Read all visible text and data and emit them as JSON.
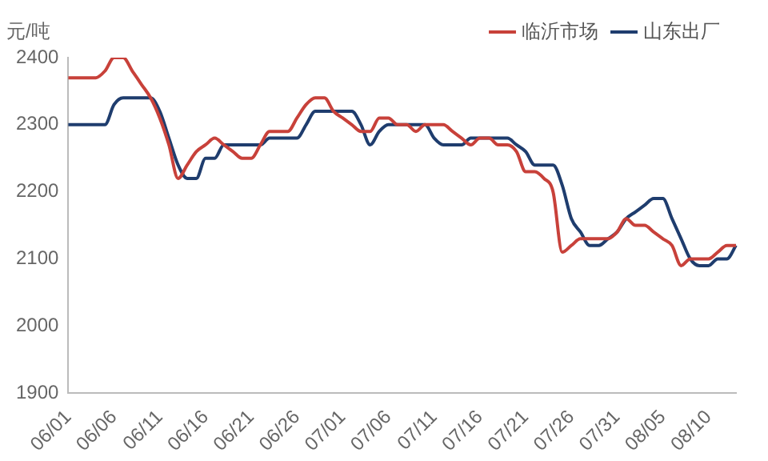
{
  "chart_data": {
    "type": "line",
    "ylabel": "元/吨",
    "categories": [
      "06/01",
      null,
      null,
      null,
      null,
      "06/06",
      null,
      null,
      null,
      null,
      "06/11",
      null,
      null,
      null,
      null,
      "06/16",
      null,
      null,
      null,
      null,
      "06/21",
      null,
      null,
      null,
      null,
      "06/26",
      null,
      null,
      null,
      null,
      "07/01",
      null,
      null,
      null,
      null,
      "07/06",
      null,
      null,
      null,
      null,
      "07/11",
      null,
      null,
      null,
      null,
      "07/16",
      null,
      null,
      null,
      null,
      "07/21",
      null,
      null,
      null,
      null,
      "07/26",
      null,
      null,
      null,
      null,
      "07/31",
      null,
      null,
      null,
      null,
      "08/05",
      null,
      null,
      null,
      null,
      "08/10",
      null,
      null,
      null
    ],
    "series": [
      {
        "name": "临沂市场",
        "color": "#c8413a",
        "values": [
          2370,
          2370,
          2370,
          2370,
          2380,
          2400,
          2400,
          2380,
          2360,
          2340,
          2310,
          2270,
          2220,
          2240,
          2260,
          2270,
          2280,
          2270,
          2260,
          2250,
          2250,
          2270,
          2290,
          2290,
          2290,
          2310,
          2330,
          2340,
          2340,
          2320,
          2310,
          2300,
          2290,
          2290,
          2310,
          2310,
          2300,
          2300,
          2290,
          2300,
          2300,
          2300,
          2290,
          2280,
          2270,
          2280,
          2280,
          2270,
          2270,
          2260,
          2230,
          2230,
          2220,
          2200,
          2110,
          2120,
          2130,
          2130,
          2130,
          2130,
          2140,
          2160,
          2150,
          2150,
          2140,
          2130,
          2120,
          2090,
          2100,
          2100,
          2100,
          2110,
          2120,
          2120
        ]
      },
      {
        "name": "山东出厂",
        "color": "#1f3d6e",
        "values": [
          2300,
          2300,
          2300,
          2300,
          2300,
          2330,
          2340,
          2340,
          2340,
          2340,
          2320,
          2280,
          2240,
          2220,
          2220,
          2250,
          2250,
          2270,
          2270,
          2270,
          2270,
          2270,
          2280,
          2280,
          2280,
          2280,
          2300,
          2320,
          2320,
          2320,
          2320,
          2320,
          2300,
          2270,
          2290,
          2300,
          2300,
          2300,
          2300,
          2300,
          2280,
          2270,
          2270,
          2270,
          2280,
          2280,
          2280,
          2280,
          2280,
          2270,
          2260,
          2240,
          2240,
          2240,
          2210,
          2160,
          2140,
          2120,
          2120,
          2130,
          2140,
          2160,
          2170,
          2180,
          2190,
          2190,
          2160,
          2130,
          2100,
          2090,
          2090,
          2100,
          2100,
          2120
        ]
      }
    ],
    "ylim": [
      1900,
      2400
    ],
    "yticks": [
      1900,
      2000,
      2100,
      2200,
      2300,
      2400
    ],
    "grid": false,
    "legend": "top right",
    "marker": "none",
    "line_style": "solid"
  }
}
